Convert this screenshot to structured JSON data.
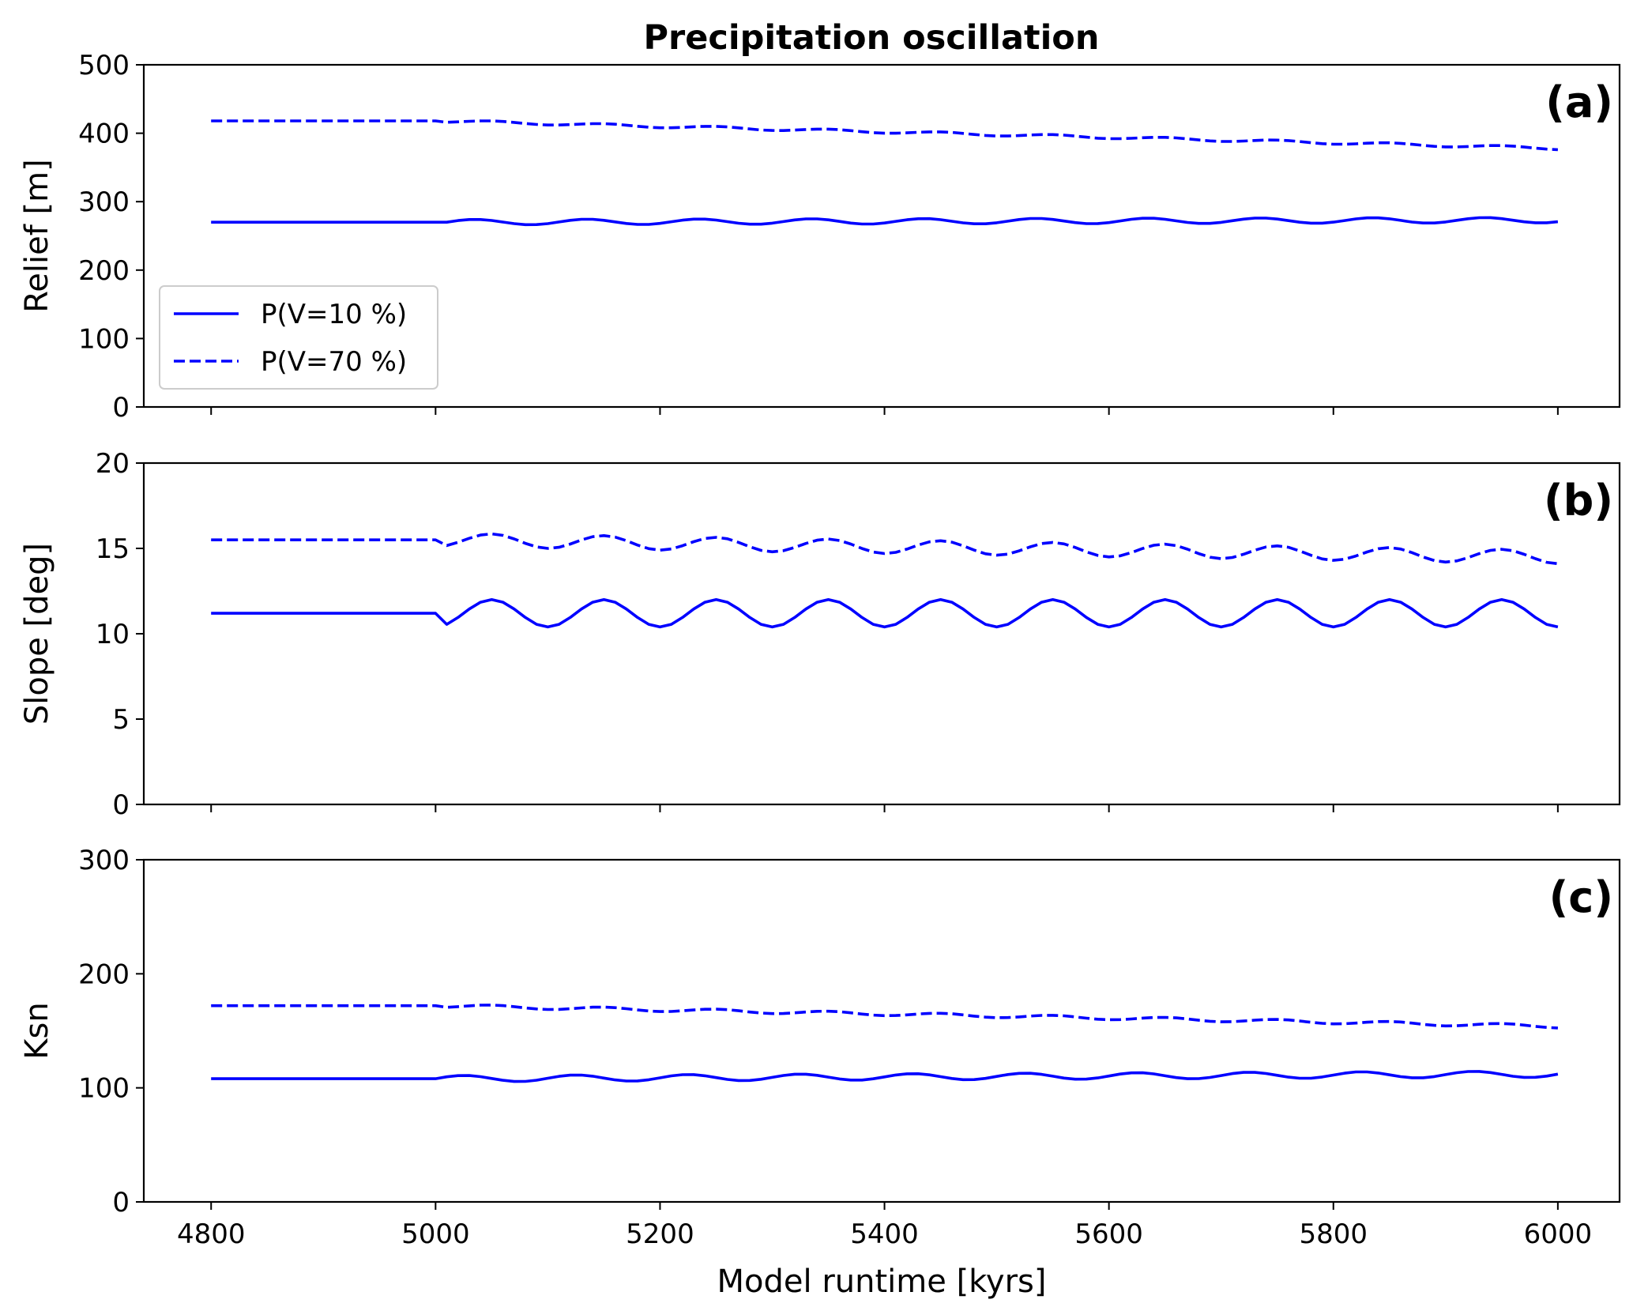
{
  "title": "Precipitation oscillation",
  "colors": {
    "series": "#0000ff",
    "axes": "#000000",
    "legend_border": "#cccccc"
  },
  "legend": {
    "placement": "lower-left",
    "axis": 0,
    "entries": [
      {
        "label": "P(V=10 %)",
        "style": "solid"
      },
      {
        "label": "P(V=70 %)",
        "style": "dashed"
      }
    ]
  },
  "chart_data": [
    {
      "type": "line",
      "panel_label": "(a)",
      "ylabel": "Relief [m]",
      "xlabel": "",
      "xlim": [
        4740,
        6055
      ],
      "ylim": [
        0,
        500
      ],
      "xticks": [
        4800,
        5000,
        5200,
        5400,
        5600,
        5800,
        6000
      ],
      "yticks": [
        0,
        100,
        200,
        300,
        400,
        500
      ],
      "show_xticklabels": false,
      "series": [
        {
          "name": "P(V=10 %)",
          "style": "solid",
          "x_start": 4800,
          "x_end": 6000,
          "step": 10,
          "flat_until": 5000,
          "base": 270,
          "amplitude": 4,
          "period": 100,
          "phase_offset": 10,
          "trend_per_100kyr": 0.3
        },
        {
          "name": "P(V=70 %)",
          "style": "dashed",
          "x_start": 4800,
          "x_end": 6000,
          "step": 10,
          "flat_until": 5000,
          "base": 418,
          "amplitude": 2,
          "period": 100,
          "phase_offset": 25,
          "trend_per_100kyr": -4
        }
      ]
    },
    {
      "type": "line",
      "panel_label": "(b)",
      "ylabel": "Slope [deg]",
      "xlabel": "",
      "xlim": [
        4740,
        6055
      ],
      "ylim": [
        0,
        20
      ],
      "xticks": [
        4800,
        5000,
        5200,
        5400,
        5600,
        5800,
        6000
      ],
      "yticks": [
        0,
        5,
        10,
        15,
        20
      ],
      "show_xticklabels": false,
      "series": [
        {
          "name": "P(V=10 %)",
          "style": "solid",
          "x_start": 4800,
          "x_end": 6000,
          "step": 10,
          "flat_until": 5000,
          "base": 11.2,
          "amplitude": 0.8,
          "period": 100,
          "phase_offset": 25,
          "trend_per_100kyr": 0
        },
        {
          "name": "P(V=70 %)",
          "style": "dashed",
          "x_start": 4800,
          "x_end": 6000,
          "step": 10,
          "flat_until": 5000,
          "base": 15.5,
          "amplitude": 0.4,
          "period": 100,
          "phase_offset": 25,
          "trend_per_100kyr": -0.1
        }
      ]
    },
    {
      "type": "line",
      "panel_label": "(c)",
      "ylabel": "Ksn",
      "xlabel": "Model runtime [kyrs]",
      "xlim": [
        4740,
        6055
      ],
      "ylim": [
        0,
        300
      ],
      "xticks": [
        4800,
        5000,
        5200,
        5400,
        5600,
        5800,
        6000
      ],
      "yticks": [
        0,
        100,
        200,
        300
      ],
      "show_xticklabels": true,
      "series": [
        {
          "name": "P(V=10 %)",
          "style": "solid",
          "x_start": 4800,
          "x_end": 6000,
          "step": 10,
          "flat_until": 5000,
          "base": 108,
          "amplitude": 2.8,
          "period": 100,
          "phase_offset": 0,
          "trend_per_100kyr": 0.4
        },
        {
          "name": "P(V=70 %)",
          "style": "dashed",
          "x_start": 4800,
          "x_end": 6000,
          "step": 10,
          "flat_until": 5000,
          "base": 172,
          "amplitude": 1.5,
          "period": 100,
          "phase_offset": 25,
          "trend_per_100kyr": -1.8
        }
      ]
    }
  ]
}
